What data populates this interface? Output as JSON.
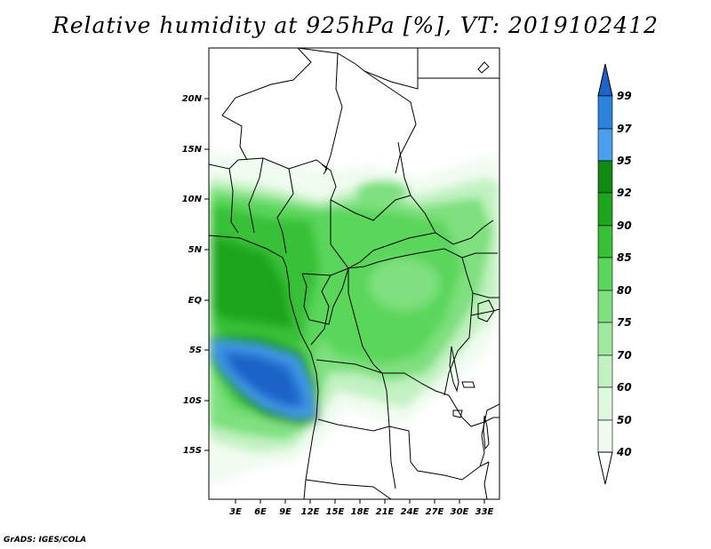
{
  "title": "Relative humidity at 925hPa [%], VT: 2019102412",
  "footer": "GrADS: IGES/COLA",
  "map": {
    "lat_labels": [
      "20N",
      "15N",
      "10N",
      "5N",
      "EQ",
      "5S",
      "10S",
      "15S"
    ],
    "lon_labels": [
      "3E",
      "6E",
      "9E",
      "12E",
      "15E",
      "18E",
      "21E",
      "24E",
      "27E",
      "30E",
      "33E"
    ]
  },
  "colorbar": {
    "labels": [
      "99",
      "97",
      "95",
      "92",
      "90",
      "85",
      "80",
      "75",
      "70",
      "60",
      "50",
      "40"
    ],
    "colors": [
      "#1e64c8",
      "#2d82dc",
      "#4aa0ee",
      "#108a10",
      "#1ea51e",
      "#38c038",
      "#5ad65a",
      "#7ee07e",
      "#a0eaa0",
      "#c2f2c2",
      "#def8de",
      "#f0fcf0",
      "#ffffff"
    ]
  }
}
